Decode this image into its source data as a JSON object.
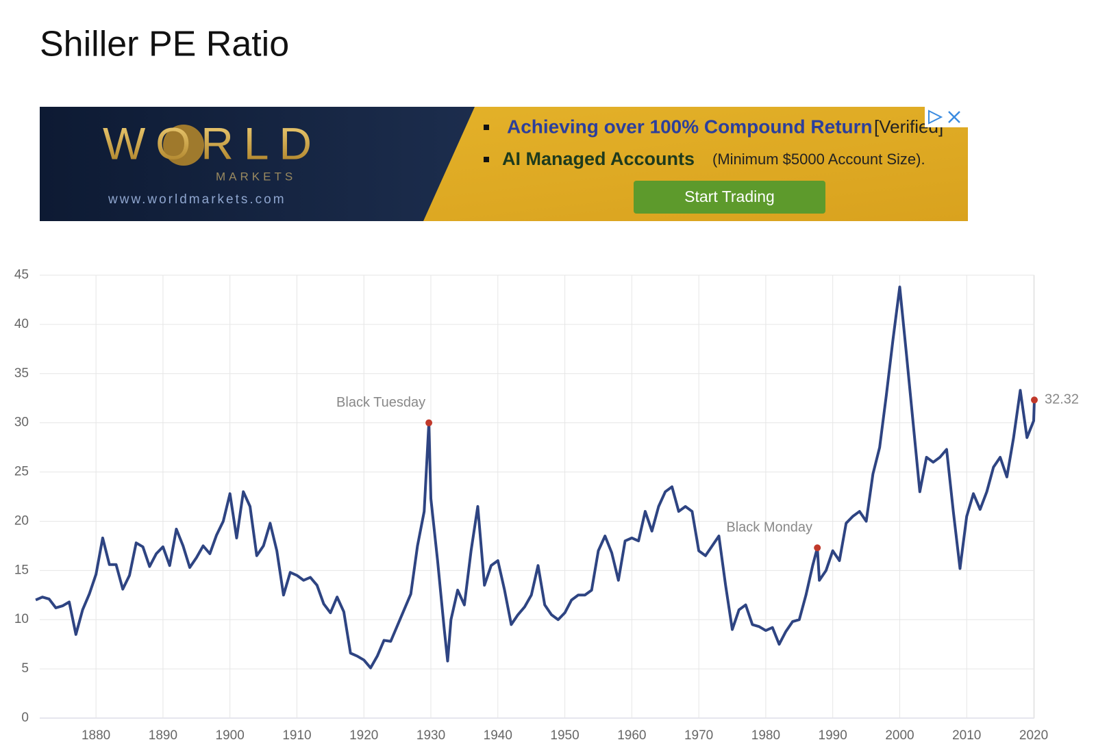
{
  "header": {
    "title": "Shiller PE Ratio"
  },
  "ad": {
    "logo": "WORLD",
    "logo_sub": "MARKETS",
    "url": "www.worldmarkets.com",
    "line1": "Achieving over 100% Compound Return",
    "line1_tag": "[Verified]",
    "line2": "AI Managed Accounts",
    "line2_note": "(Minimum $5000 Account Size).",
    "button": "Start Trading"
  },
  "chart_data": {
    "type": "line",
    "x": [
      1871,
      1872,
      1873,
      1874,
      1875,
      1876,
      1877,
      1878,
      1879,
      1880,
      1881,
      1882,
      1883,
      1884,
      1885,
      1886,
      1887,
      1888,
      1889,
      1890,
      1891,
      1892,
      1893,
      1894,
      1895,
      1896,
      1897,
      1898,
      1899,
      1900,
      1901,
      1902,
      1903,
      1904,
      1905,
      1906,
      1907,
      1908,
      1909,
      1910,
      1911,
      1912,
      1913,
      1914,
      1915,
      1916,
      1917,
      1918,
      1919,
      1920,
      1921,
      1922,
      1923,
      1924,
      1925,
      1926,
      1927,
      1928,
      1929,
      1929.7,
      1930,
      1931,
      1932,
      1932.5,
      1933,
      1934,
      1935,
      1936,
      1937,
      1938,
      1939,
      1940,
      1941,
      1942,
      1943,
      1944,
      1945,
      1946,
      1947,
      1948,
      1949,
      1950,
      1951,
      1952,
      1953,
      1954,
      1955,
      1956,
      1957,
      1958,
      1959,
      1960,
      1961,
      1962,
      1963,
      1964,
      1965,
      1966,
      1967,
      1968,
      1969,
      1970,
      1971,
      1972,
      1973,
      1974,
      1975,
      1976,
      1977,
      1978,
      1979,
      1980,
      1981,
      1982,
      1983,
      1984,
      1985,
      1986,
      1987,
      1987.7,
      1988,
      1989,
      1990,
      1991,
      1992,
      1993,
      1994,
      1995,
      1996,
      1997,
      1998,
      1999,
      2000,
      2001,
      2002,
      2003,
      2004,
      2005,
      2006,
      2007,
      2008,
      2009,
      2010,
      2011,
      2012,
      2013,
      2014,
      2015,
      2016,
      2017,
      2018,
      2019,
      2020,
      2020.1
    ],
    "series": [
      {
        "color": "#2e4482",
        "values": [
          12.0,
          12.3,
          12.1,
          11.2,
          11.4,
          11.8,
          8.5,
          11.0,
          12.6,
          14.6,
          18.3,
          15.6,
          15.6,
          13.1,
          14.5,
          17.8,
          17.4,
          15.4,
          16.7,
          17.4,
          15.5,
          19.2,
          17.5,
          15.3,
          16.3,
          17.5,
          16.7,
          18.6,
          20.0,
          22.8,
          18.3,
          23.0,
          21.5,
          16.5,
          17.5,
          19.8,
          17.0,
          12.5,
          14.8,
          14.5,
          14.0,
          14.3,
          13.5,
          11.6,
          10.7,
          12.3,
          10.8,
          6.6,
          6.3,
          5.9,
          5.1,
          6.3,
          7.9,
          7.8,
          9.4,
          11.0,
          12.6,
          17.5,
          21.0,
          30.0,
          22.3,
          16.0,
          9.0,
          5.8,
          10.0,
          13.0,
          11.5,
          17.0,
          21.5,
          13.5,
          15.5,
          16.0,
          13.0,
          9.5,
          10.5,
          11.3,
          12.5,
          15.5,
          11.5,
          10.5,
          10.0,
          10.7,
          12.0,
          12.5,
          12.5,
          13.0,
          17.0,
          18.5,
          16.8,
          14.0,
          18.0,
          18.3,
          18.0,
          21.0,
          19.0,
          21.5,
          23.0,
          23.5,
          21.0,
          21.5,
          21.0,
          17.0,
          16.5,
          17.5,
          18.5,
          13.5,
          9.0,
          11.0,
          11.5,
          9.5,
          9.3,
          8.9,
          9.2,
          7.5,
          8.8,
          9.8,
          10.0,
          12.5,
          15.5,
          17.3,
          14.0,
          15.0,
          17.0,
          16.0,
          19.8,
          20.5,
          21.0,
          20.0,
          24.8,
          27.5,
          32.8,
          38.5,
          43.8,
          37.0,
          30.0,
          23.0,
          26.5,
          26.0,
          26.5,
          27.3,
          21.0,
          15.2,
          20.5,
          22.8,
          21.2,
          23.0,
          25.5,
          26.5,
          24.5,
          28.5,
          33.3,
          28.5,
          30.2,
          32.32
        ]
      }
    ],
    "annotations": [
      {
        "label": "Black Tuesday",
        "x": 1929.7,
        "y": 30.0
      },
      {
        "label": "Black Monday",
        "x": 1987.7,
        "y": 17.3
      },
      {
        "x": 2020.1,
        "y": 32.32
      }
    ],
    "marker_color": "#c0392b",
    "xlim": [
      1871.6,
      2020.1
    ],
    "ylim": [
      0,
      45
    ],
    "xticks": [
      1880,
      1890,
      1900,
      1910,
      1920,
      1930,
      1940,
      1950,
      1960,
      1970,
      1980,
      1990,
      2000,
      2010,
      2020
    ],
    "yticks": [
      0,
      5,
      10,
      15,
      20,
      25,
      30,
      35,
      40,
      45
    ],
    "grid": true
  }
}
